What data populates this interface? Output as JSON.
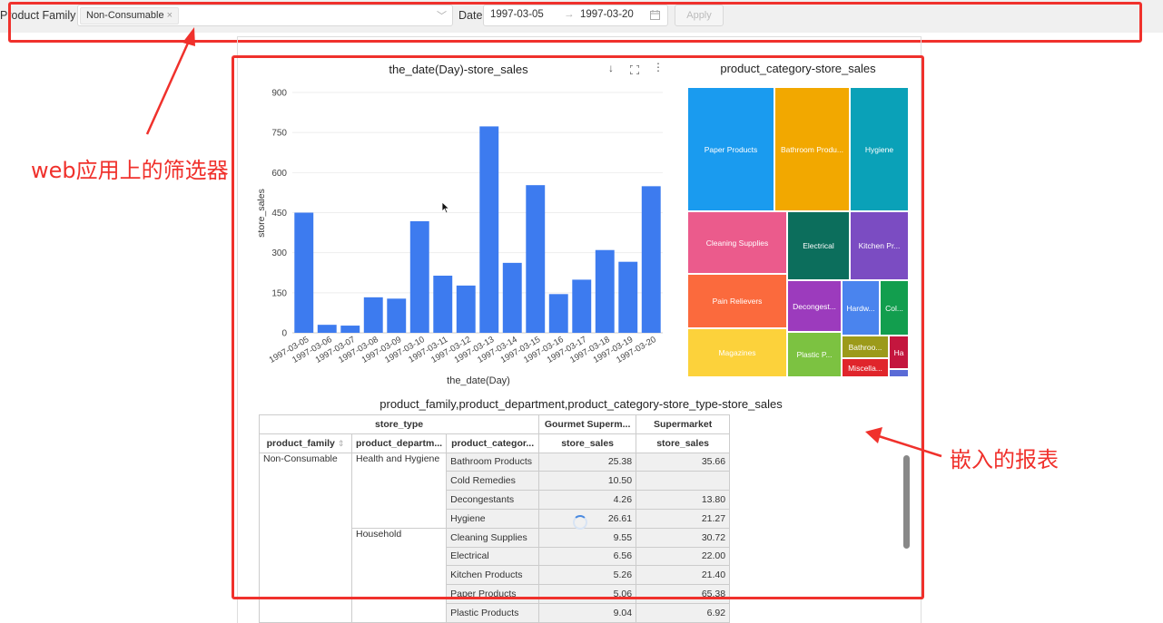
{
  "filter_bar": {
    "product_family_label": "Product Family",
    "product_family_value": "Non-Consumable",
    "date_label": "Date",
    "date_start": "1997-03-05",
    "date_end": "1997-03-20",
    "date_arrow": "→",
    "apply_label": "Apply"
  },
  "annotations": {
    "filter_note": "web应用上的筛选器",
    "report_note": "嵌入的报表"
  },
  "bar_chart": {
    "title": "the_date(Day)-store_sales",
    "chart_data": {
      "type": "bar",
      "categories": [
        "1997-03-05",
        "1997-03-06",
        "1997-03-07",
        "1997-03-08",
        "1997-03-09",
        "1997-03-10",
        "1997-03-11",
        "1997-03-12",
        "1997-03-13",
        "1997-03-14",
        "1997-03-15",
        "1997-03-16",
        "1997-03-17",
        "1997-03-18",
        "1997-03-19",
        "1997-03-20"
      ],
      "values": [
        450,
        30,
        27,
        133,
        128,
        418,
        214,
        177,
        773,
        262,
        553,
        145,
        199,
        310,
        266,
        549
      ],
      "xlabel": "the_date(Day)",
      "ylabel": "store_sales",
      "yticks": [
        0,
        150,
        300,
        450,
        600,
        750,
        900
      ],
      "ylim": [
        0,
        900
      ],
      "color": "#3d7bef",
      "grid": true
    }
  },
  "treemap": {
    "title": "product_category-store_sales",
    "cells": [
      {
        "label": "Paper Products",
        "color": "#1a9bef"
      },
      {
        "label": "Bathroom Produ...",
        "color": "#f2a800"
      },
      {
        "label": "Hygiene",
        "color": "#0aa1b8"
      },
      {
        "label": "Cleaning Supplies",
        "color": "#eb5b8c"
      },
      {
        "label": "Electrical",
        "color": "#0c6e5c"
      },
      {
        "label": "Kitchen Pr...",
        "color": "#7b4cc2"
      },
      {
        "label": "Pain Relievers",
        "color": "#fb6a3d"
      },
      {
        "label": "Decongest...",
        "color": "#9c3bbd"
      },
      {
        "label": "Hardw...",
        "color": "#4a84ee"
      },
      {
        "label": "Col...",
        "color": "#129e4e"
      },
      {
        "label": "Magazines",
        "color": "#fcd23b"
      },
      {
        "label": "Plastic P...",
        "color": "#7cc241"
      },
      {
        "label": "Bathroo...",
        "color": "#9c9a1a"
      },
      {
        "label": "Ha",
        "color": "#c4163e"
      },
      {
        "label": "Miscella...",
        "color": "#e0252b"
      },
      {
        "label": "",
        "color": "#5a6bd6"
      }
    ]
  },
  "pivot": {
    "title": "product_family,product_department,product_category-store_type-store_sales",
    "header_store_type": "store_type",
    "header_gourmet": "Gourmet Superm...",
    "header_supermarket": "Supermarket",
    "col_family": "product_family",
    "sort_icon": "⇕",
    "col_department": "product_departm...",
    "col_category": "product_categor...",
    "col_sales1": "store_sales",
    "col_sales2": "store_sales",
    "family": "Non-Consumable",
    "dept1": "Health and Hygiene",
    "dept2": "Household",
    "rows": [
      {
        "category": "Bathroom Products",
        "gourmet": "25.38",
        "super": "35.66"
      },
      {
        "category": "Cold Remedies",
        "gourmet": "10.50",
        "super": ""
      },
      {
        "category": "Decongestants",
        "gourmet": "4.26",
        "super": "13.80"
      },
      {
        "category": "Hygiene",
        "gourmet": "26.61",
        "super": "21.27"
      },
      {
        "category": "Cleaning Supplies",
        "gourmet": "9.55",
        "super": "30.72"
      },
      {
        "category": "Electrical",
        "gourmet": "6.56",
        "super": "22.00"
      },
      {
        "category": "Kitchen Products",
        "gourmet": "5.26",
        "super": "21.40"
      },
      {
        "category": "Paper Products",
        "gourmet": "5.06",
        "super": "65.38"
      },
      {
        "category": "Plastic Products",
        "gourmet": "9.04",
        "super": "6.92"
      }
    ]
  }
}
